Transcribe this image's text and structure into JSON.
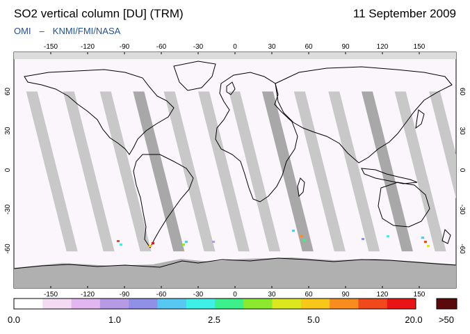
{
  "header": {
    "title": "SO2 vertical column [DU] (TRM)",
    "date": "11 September 2009",
    "credit_left": "OMI",
    "credit_dash": "–",
    "credit_right": "KNMI/FMI/NASA"
  },
  "map": {
    "longitude_ticks": [
      "-150",
      "-120",
      "-90",
      "-60",
      "-30",
      "0",
      "30",
      "60",
      "90",
      "120",
      "150"
    ],
    "latitude_ticks": [
      "60",
      "30",
      "0",
      "-30",
      "-60"
    ],
    "no_data_color": "#c8c8c8",
    "no_data_dark_color": "#a8a8a8",
    "coastline_color": "#000000"
  },
  "colorbar": {
    "labels": [
      "0.0",
      "1.0",
      "2.5",
      "5.0",
      "20.0"
    ],
    "overflow_label": ">50",
    "overflow_color": "#5a0a0a",
    "colors": [
      "#ffffff",
      "#f3dcf3",
      "#e2b6ee",
      "#b69ae6",
      "#8f90e6",
      "#56c8f2",
      "#3ef0e6",
      "#3cf08c",
      "#8cea2e",
      "#dce81e",
      "#f8c818",
      "#f88c1c",
      "#f04a1c",
      "#e81416"
    ]
  }
}
